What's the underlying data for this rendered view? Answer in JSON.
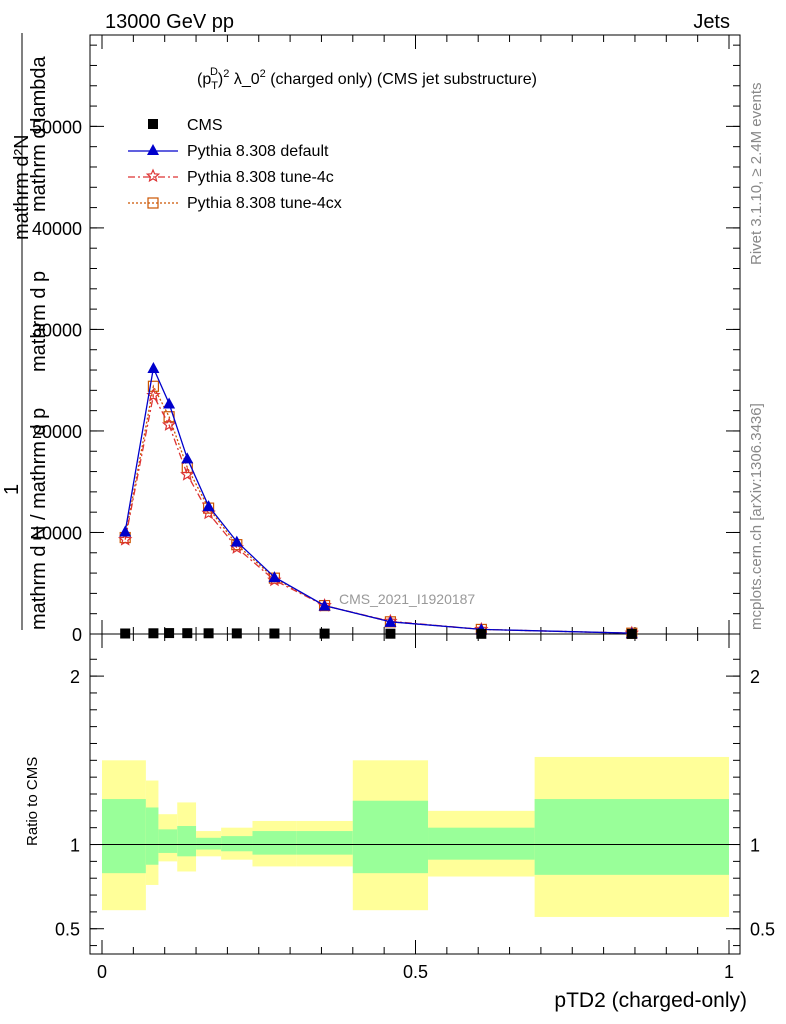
{
  "header": {
    "left": "13000 GeV pp",
    "right": "Jets"
  },
  "side_labels": {
    "rivet": "Rivet 3.1.10, ≥ 2.4M events",
    "mcplots": "mcplots.cern.ch [arXiv:1306.3436]"
  },
  "chart_data": {
    "type": "line",
    "title_main": "λ_0",
    "title_rest": "(charged only) (CMS jet substructure)",
    "analysis_id": "CMS_2021_I1920187",
    "xlabel": "pTD2 (charged-only)",
    "ylabel_parts": [
      "1",
      "mathrm d N / mathrm d p",
      "mathrm d p",
      "mathrm d lambda",
      "mathrm d²N"
    ],
    "ratio_ylabel": "Ratio to CMS",
    "xlim": [
      0,
      1
    ],
    "ylim_main": [
      0,
      59000
    ],
    "ylim_ratio": [
      0.35,
      2.25
    ],
    "x_ticks": [
      0,
      0.5,
      1
    ],
    "x_tick_labels": [
      "0",
      "0.5",
      "1"
    ],
    "y_ticks_main": [
      0,
      10000,
      20000,
      30000,
      40000,
      50000
    ],
    "y_tick_labels_main": [
      "0",
      "10000",
      "20000",
      "30000",
      "40000",
      "50000"
    ],
    "y_ticks_ratio": [
      0.5,
      1,
      2
    ],
    "y_tick_labels_ratio": [
      "0.5",
      "1",
      "2"
    ],
    "x": [
      0.037,
      0.082,
      0.107,
      0.136,
      0.17,
      0.215,
      0.275,
      0.355,
      0.46,
      0.605,
      0.845
    ],
    "series": [
      {
        "name": "CMS",
        "color": "#000000",
        "marker": "square",
        "values": [
          50,
          70,
          90,
          80,
          70,
          60,
          50,
          40,
          30,
          20,
          10
        ]
      },
      {
        "name": "Pythia 8.308 default",
        "color": "#0000cc",
        "marker": "triangle",
        "dash": "",
        "values": [
          10100,
          26200,
          22700,
          17300,
          12600,
          9100,
          5600,
          2800,
          1200,
          450,
          80
        ]
      },
      {
        "name": "Pythia 8.308 tune-4c",
        "color": "#dd3333",
        "marker": "star",
        "dash": "7,3,2,3",
        "values": [
          9300,
          23500,
          20600,
          15700,
          11900,
          8500,
          5300,
          2800,
          1250,
          450,
          80
        ]
      },
      {
        "name": "Pythia 8.308 tune-4cx",
        "color": "#cc5500",
        "marker": "opensquare",
        "dash": "2,2",
        "values": [
          9500,
          24400,
          21400,
          16400,
          12400,
          8800,
          5500,
          2800,
          1200,
          450,
          80
        ]
      }
    ],
    "ratio_bands": [
      {
        "x0": 0.0,
        "x1": 0.07,
        "inner": [
          0.83,
          1.27
        ],
        "outer": [
          0.61,
          1.5
        ]
      },
      {
        "x0": 0.07,
        "x1": 0.09,
        "inner": [
          0.88,
          1.22
        ],
        "outer": [
          0.76,
          1.38
        ]
      },
      {
        "x0": 0.09,
        "x1": 0.12,
        "inner": [
          0.95,
          1.09
        ],
        "outer": [
          0.9,
          1.18
        ]
      },
      {
        "x0": 0.12,
        "x1": 0.15,
        "inner": [
          0.93,
          1.11
        ],
        "outer": [
          0.84,
          1.25
        ]
      },
      {
        "x0": 0.15,
        "x1": 0.19,
        "inner": [
          0.97,
          1.04
        ],
        "outer": [
          0.93,
          1.08
        ]
      },
      {
        "x0": 0.19,
        "x1": 0.24,
        "inner": [
          0.96,
          1.05
        ],
        "outer": [
          0.91,
          1.1
        ]
      },
      {
        "x0": 0.24,
        "x1": 0.31,
        "inner": [
          0.94,
          1.08
        ],
        "outer": [
          0.87,
          1.14
        ]
      },
      {
        "x0": 0.31,
        "x1": 0.4,
        "inner": [
          0.94,
          1.08
        ],
        "outer": [
          0.87,
          1.14
        ]
      },
      {
        "x0": 0.4,
        "x1": 0.52,
        "inner": [
          0.83,
          1.26
        ],
        "outer": [
          0.61,
          1.5
        ]
      },
      {
        "x0": 0.52,
        "x1": 0.69,
        "inner": [
          0.91,
          1.1
        ],
        "outer": [
          0.81,
          1.2
        ]
      },
      {
        "x0": 0.69,
        "x1": 1.0,
        "inner": [
          0.82,
          1.27
        ],
        "outer": [
          0.57,
          1.52
        ]
      }
    ]
  }
}
